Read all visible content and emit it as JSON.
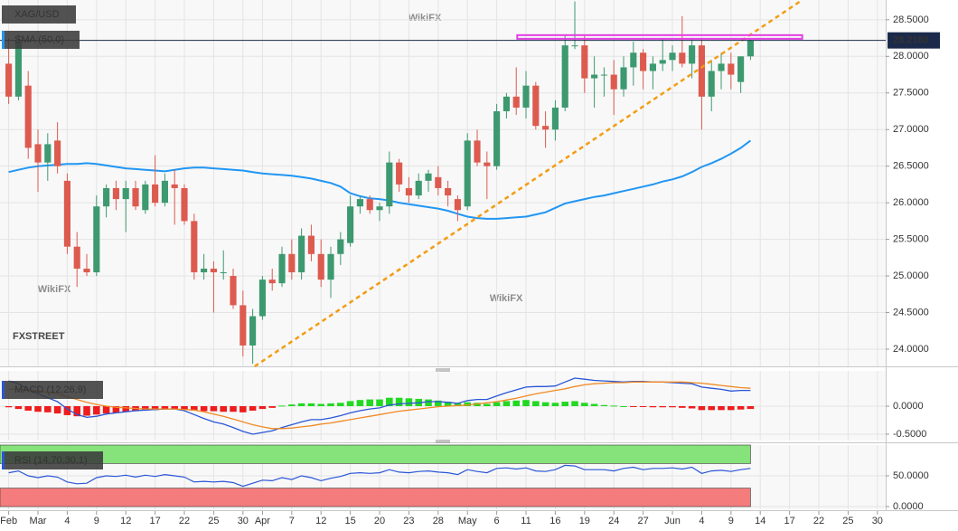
{
  "chart_data": [
    {
      "type": "candlestick",
      "title": "XAG/USD",
      "up_color": "#3d9970",
      "down_color": "#dd5a4f",
      "open": [
        27.9,
        27.45,
        27.6,
        26.8,
        26.55,
        26.85,
        26.3,
        25.4,
        25.1,
        25.05,
        25.95,
        26.2,
        26.05,
        26.2,
        25.9,
        26.25,
        26.0,
        26.25,
        26.2,
        25.75,
        25.05,
        25.1,
        25.05,
        25.0,
        24.6,
        24.05,
        24.45,
        24.95,
        24.9,
        25.3,
        25.05,
        25.55,
        25.3,
        24.95,
        25.3,
        25.45,
        25.95,
        26.05,
        25.9,
        25.95,
        26.55,
        26.2,
        26.1,
        26.3,
        26.35,
        26.2,
        26.05,
        25.95,
        26.85,
        26.55,
        26.5,
        27.25,
        27.45,
        27.3,
        27.6,
        27.05,
        27.0,
        27.3,
        28.15,
        28.15,
        27.7,
        27.75,
        27.75,
        27.55,
        27.85,
        28.05,
        27.8,
        27.9,
        27.95,
        28.05,
        27.9,
        28.15,
        27.45,
        27.8,
        27.9,
        27.65,
        28.0
      ],
      "high": [
        28.25,
        28.3,
        27.8,
        27.0,
        26.95,
        27.1,
        26.4,
        25.6,
        25.3,
        26.1,
        26.25,
        26.3,
        26.3,
        26.3,
        26.3,
        26.65,
        26.4,
        26.45,
        26.25,
        25.85,
        25.3,
        25.2,
        25.35,
        25.1,
        24.8,
        24.55,
        25.0,
        25.1,
        25.4,
        25.5,
        25.65,
        25.7,
        25.5,
        25.4,
        25.6,
        26.1,
        26.1,
        26.1,
        26.0,
        26.7,
        26.6,
        26.35,
        26.4,
        26.45,
        26.5,
        26.3,
        26.1,
        26.95,
        27.0,
        26.7,
        27.35,
        27.5,
        27.85,
        27.8,
        27.65,
        27.25,
        27.4,
        28.3,
        28.75,
        28.3,
        28.0,
        27.85,
        27.95,
        28.0,
        28.2,
        28.1,
        28.0,
        28.25,
        28.15,
        28.55,
        28.25,
        28.25,
        27.95,
        28.05,
        28.05,
        28.0,
        28.25
      ],
      "low": [
        27.35,
        27.4,
        26.6,
        26.15,
        26.3,
        26.4,
        25.3,
        24.85,
        25.0,
        25.0,
        25.8,
        25.9,
        25.6,
        25.9,
        25.85,
        25.95,
        25.95,
        25.7,
        25.7,
        24.95,
        24.95,
        24.5,
        24.95,
        24.55,
        23.9,
        23.8,
        24.4,
        24.8,
        24.85,
        24.95,
        24.95,
        25.2,
        24.85,
        24.7,
        25.15,
        25.4,
        25.85,
        25.85,
        25.75,
        25.85,
        26.15,
        26.0,
        26.05,
        26.15,
        26.1,
        25.95,
        25.75,
        25.9,
        26.5,
        26.05,
        26.45,
        27.15,
        27.2,
        27.15,
        27.0,
        26.75,
        26.85,
        27.25,
        28.1,
        27.5,
        27.3,
        27.45,
        27.2,
        27.45,
        27.6,
        27.55,
        27.55,
        27.8,
        27.8,
        27.85,
        27.7,
        27.0,
        27.25,
        27.55,
        27.55,
        27.5,
        27.95
      ],
      "close": [
        27.45,
        28.2,
        26.75,
        26.55,
        26.8,
        26.5,
        25.4,
        25.1,
        25.05,
        25.95,
        26.2,
        26.05,
        26.2,
        25.95,
        26.25,
        26.0,
        26.3,
        26.2,
        25.75,
        25.05,
        25.1,
        25.05,
        25.05,
        24.6,
        24.05,
        24.45,
        24.95,
        24.9,
        25.3,
        25.05,
        25.55,
        25.3,
        24.95,
        25.3,
        25.5,
        25.95,
        26.05,
        25.9,
        25.95,
        26.55,
        26.25,
        26.1,
        26.3,
        26.4,
        26.2,
        26.1,
        25.9,
        26.85,
        26.55,
        26.5,
        27.25,
        27.45,
        27.3,
        27.6,
        27.05,
        27.0,
        27.3,
        28.15,
        28.15,
        27.7,
        27.75,
        27.75,
        27.55,
        27.85,
        28.05,
        27.8,
        27.9,
        27.95,
        28.05,
        27.9,
        28.15,
        27.45,
        27.8,
        27.9,
        27.75,
        28.0,
        28.22
      ],
      "xlim": [
        -0.89,
        89.85
      ],
      "xticks": [
        {
          "value": 0,
          "label": "Feb"
        },
        {
          "value": 3,
          "label": "Mar"
        },
        {
          "value": 6,
          "label": "4"
        },
        {
          "value": 9,
          "label": "9"
        },
        {
          "value": 12,
          "label": "12"
        },
        {
          "value": 15,
          "label": "17"
        },
        {
          "value": 18,
          "label": "22"
        },
        {
          "value": 21,
          "label": "25"
        },
        {
          "value": 24,
          "label": "30"
        },
        {
          "value": 26,
          "label": "Apr"
        },
        {
          "value": 29,
          "label": "7"
        },
        {
          "value": 32,
          "label": "12"
        },
        {
          "value": 35,
          "label": "15"
        },
        {
          "value": 38,
          "label": "20"
        },
        {
          "value": 41,
          "label": "23"
        },
        {
          "value": 44,
          "label": "28"
        },
        {
          "value": 47,
          "label": "May"
        },
        {
          "value": 50,
          "label": "6"
        },
        {
          "value": 53,
          "label": "11"
        },
        {
          "value": 56,
          "label": "16"
        },
        {
          "value": 59,
          "label": "19"
        },
        {
          "value": 62,
          "label": "24"
        },
        {
          "value": 65,
          "label": "27"
        },
        {
          "value": 68,
          "label": "Jun"
        },
        {
          "value": 71,
          "label": "4"
        },
        {
          "value": 74,
          "label": "9"
        },
        {
          "value": 77,
          "label": "14"
        },
        {
          "value": 80,
          "label": "17"
        },
        {
          "value": 83,
          "label": "22"
        },
        {
          "value": 86,
          "label": "25"
        },
        {
          "value": 89,
          "label": "30"
        }
      ],
      "ylim": [
        23.765,
        28.77
      ],
      "yticks": [
        {
          "value": 24,
          "label": "24.0000"
        },
        {
          "value": 24.5,
          "label": "24.5000"
        },
        {
          "value": 25,
          "label": "25.0000"
        },
        {
          "value": 25.5,
          "label": "25.5000"
        },
        {
          "value": 26,
          "label": "26.0000"
        },
        {
          "value": 26.5,
          "label": "26.5000"
        },
        {
          "value": 27,
          "label": "27.0000"
        },
        {
          "value": 27.5,
          "label": "27.5000"
        },
        {
          "value": 28,
          "label": "28.0000"
        },
        {
          "value": 28.5,
          "label": "28.5000"
        }
      ],
      "grid": true,
      "last_price": {
        "value": 28.218,
        "label": "28.2180"
      },
      "sma": {
        "name": "SMA (50,0)",
        "color": "#2196f3",
        "values": [
          26.42,
          26.45,
          26.48,
          26.5,
          26.51,
          26.52,
          26.53,
          26.53,
          26.54,
          26.53,
          26.51,
          26.49,
          26.47,
          26.46,
          26.45,
          26.44,
          26.43,
          26.45,
          26.47,
          26.48,
          26.48,
          26.47,
          26.46,
          26.45,
          26.44,
          26.42,
          26.4,
          26.39,
          26.38,
          26.37,
          26.35,
          26.33,
          26.3,
          26.27,
          26.22,
          26.13,
          26.09,
          26.06,
          26.05,
          26.03,
          26.0,
          25.98,
          25.96,
          25.94,
          25.92,
          25.89,
          25.85,
          25.81,
          25.79,
          25.78,
          25.78,
          25.79,
          25.8,
          25.81,
          25.84,
          25.87,
          25.93,
          25.99,
          26.02,
          26.05,
          26.08,
          26.1,
          26.13,
          26.16,
          26.19,
          26.22,
          26.25,
          26.29,
          26.32,
          26.36,
          26.42,
          26.49,
          26.54,
          26.6,
          26.67,
          26.75,
          26.85
        ]
      },
      "trendline": {
        "color": "#f39c12",
        "x": [
          25.2,
          81.3
        ],
        "values": [
          23.765,
          28.77
        ]
      },
      "resistance": {
        "color": "#e33fe3",
        "x": [
          52.1,
          81.3
        ],
        "values": [
          28.29,
          28.24
        ]
      },
      "watermarks": [
        "WikiFX",
        "FXSTREET"
      ]
    },
    {
      "type": "macd",
      "title": "MACD (12,26,9)",
      "ylim": [
        -0.613,
        0.629
      ],
      "yticks": [
        {
          "value": 0,
          "label": "0.0000"
        },
        {
          "value": -0.5,
          "label": "-0.5000"
        }
      ],
      "histogram": {
        "up_color": "#22d822",
        "down_color": "#ee1c1c",
        "values": [
          -0.02,
          -0.05,
          -0.08,
          -0.1,
          -0.11,
          -0.13,
          -0.16,
          -0.18,
          -0.17,
          -0.15,
          -0.13,
          -0.12,
          -0.1,
          -0.09,
          -0.08,
          -0.07,
          -0.06,
          -0.05,
          -0.06,
          -0.08,
          -0.09,
          -0.09,
          -0.1,
          -0.1,
          -0.11,
          -0.08,
          -0.05,
          -0.03,
          0.01,
          0.03,
          0.05,
          0.05,
          0.04,
          0.05,
          0.06,
          0.09,
          0.11,
          0.12,
          0.12,
          0.15,
          0.15,
          0.14,
          0.13,
          0.12,
          0.1,
          0.08,
          0.05,
          0.07,
          0.06,
          0.04,
          0.07,
          0.09,
          0.1,
          0.11,
          0.09,
          0.07,
          0.06,
          0.08,
          0.09,
          0.06,
          0.04,
          0.02,
          0.01,
          0.0,
          -0.01,
          -0.01,
          -0.02,
          -0.02,
          -0.02,
          -0.03,
          -0.04,
          -0.07,
          -0.07,
          -0.07,
          -0.07,
          -0.06,
          -0.05
        ]
      },
      "series": [
        {
          "color": "#2a56d6",
          "values": [
            0.45,
            0.4,
            0.3,
            0.22,
            0.15,
            0.08,
            -0.05,
            -0.15,
            -0.2,
            -0.18,
            -0.14,
            -0.12,
            -0.1,
            -0.08,
            -0.07,
            -0.06,
            -0.05,
            -0.05,
            -0.08,
            -0.15,
            -0.22,
            -0.28,
            -0.32,
            -0.38,
            -0.45,
            -0.5,
            -0.47,
            -0.44,
            -0.38,
            -0.33,
            -0.28,
            -0.24,
            -0.24,
            -0.21,
            -0.17,
            -0.12,
            -0.08,
            -0.05,
            -0.03,
            0.02,
            0.04,
            0.05,
            0.06,
            0.08,
            0.08,
            0.07,
            0.05,
            0.1,
            0.12,
            0.12,
            0.18,
            0.24,
            0.29,
            0.34,
            0.35,
            0.35,
            0.36,
            0.43,
            0.5,
            0.48,
            0.46,
            0.45,
            0.44,
            0.43,
            0.44,
            0.44,
            0.43,
            0.43,
            0.42,
            0.41,
            0.4,
            0.34,
            0.32,
            0.3,
            0.27,
            0.28,
            0.28
          ]
        },
        {
          "color": "#f08a24",
          "values": [
            0.3,
            0.3,
            0.29,
            0.27,
            0.25,
            0.22,
            0.17,
            0.12,
            0.07,
            0.03,
            0.0,
            -0.02,
            -0.03,
            -0.04,
            -0.05,
            -0.05,
            -0.05,
            -0.05,
            -0.06,
            -0.07,
            -0.1,
            -0.14,
            -0.18,
            -0.23,
            -0.28,
            -0.33,
            -0.37,
            -0.4,
            -0.4,
            -0.39,
            -0.37,
            -0.35,
            -0.32,
            -0.3,
            -0.27,
            -0.24,
            -0.21,
            -0.18,
            -0.15,
            -0.12,
            -0.09,
            -0.07,
            -0.05,
            -0.03,
            -0.01,
            0.0,
            0.01,
            0.02,
            0.04,
            0.06,
            0.08,
            0.11,
            0.14,
            0.18,
            0.22,
            0.25,
            0.28,
            0.31,
            0.35,
            0.38,
            0.4,
            0.41,
            0.42,
            0.42,
            0.43,
            0.43,
            0.43,
            0.43,
            0.43,
            0.43,
            0.42,
            0.41,
            0.39,
            0.37,
            0.35,
            0.33,
            0.32
          ]
        }
      ]
    },
    {
      "type": "rsi",
      "title": "RSI (14,70,30,1)",
      "ylim": [
        -4.4,
        100
      ],
      "yticks": [
        {
          "value": 50,
          "label": "50.0000"
        },
        {
          "value": 0,
          "label": "0.0000"
        }
      ],
      "bands": [
        {
          "from": 70,
          "to": 100,
          "color": "#86e27a"
        },
        {
          "from": 0,
          "to": 30,
          "color": "#f47c7c"
        }
      ],
      "series": [
        {
          "color": "#2a56d6",
          "values": [
            55,
            58,
            50,
            47,
            50,
            48,
            40,
            37,
            38,
            47,
            50,
            49,
            51,
            48,
            51,
            49,
            52,
            50,
            48,
            40,
            41,
            40,
            41,
            39,
            33,
            38,
            43,
            42,
            47,
            44,
            50,
            47,
            42,
            46,
            49,
            54,
            55,
            54,
            55,
            60,
            56,
            55,
            57,
            58,
            56,
            55,
            52,
            60,
            57,
            55,
            62,
            63,
            61,
            63,
            58,
            57,
            60,
            67,
            66,
            60,
            60,
            60,
            58,
            62,
            64,
            60,
            62,
            62,
            63,
            61,
            64,
            54,
            58,
            59,
            57,
            60,
            62
          ]
        }
      ]
    }
  ]
}
